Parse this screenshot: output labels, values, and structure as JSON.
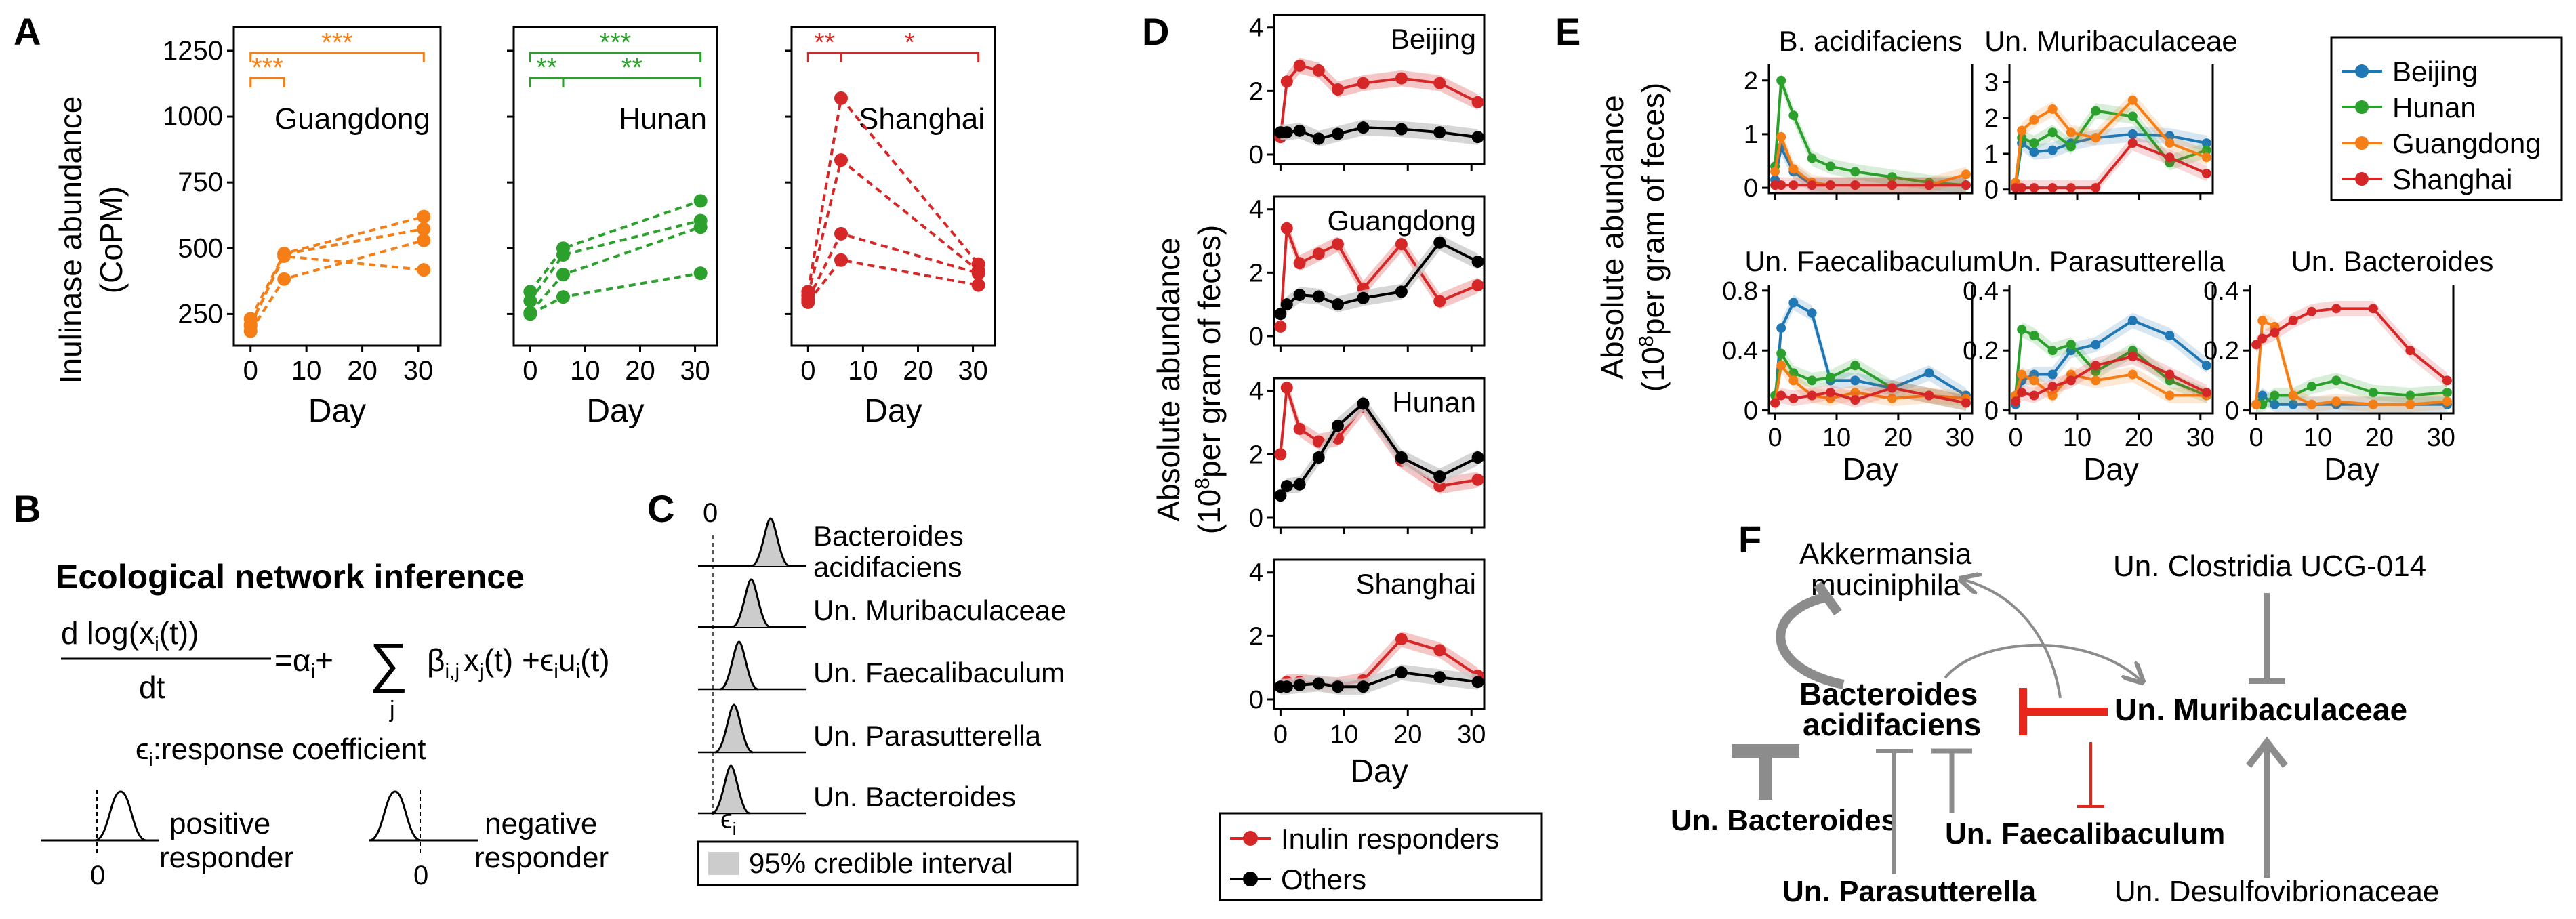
{
  "colors": {
    "Guangdong": "#f57f16",
    "Hunan": "#2ca02c",
    "Shanghai": "#d62728",
    "Beijing": "#1f77b4",
    "responder": "#d62728",
    "others": "#000000",
    "band_red": "#f2b8b8",
    "band_gray": "#cccccc",
    "network": "#8c8c8c",
    "inhibit": "#e8261c"
  },
  "panel_letters": [
    "A",
    "B",
    "C",
    "D",
    "E",
    "F"
  ],
  "panelA": {
    "ylabel": "Inulinase abundance",
    "ylabel2": "(CoPM)",
    "xlabel": "Day",
    "yticks": [
      250,
      500,
      750,
      1000,
      1250
    ],
    "xticks": [
      0,
      10,
      20,
      30
    ],
    "ylim": [
      130,
      1340
    ],
    "xlim": [
      -3,
      34
    ],
    "sig_levels_label": "significance brackets",
    "chart_data": [
      {
        "type": "line",
        "region": "Guangdong",
        "x": [
          0,
          6,
          31
        ],
        "series": [
          {
            "values": [
              232,
              480,
              620
            ]
          },
          {
            "values": [
              205,
              478,
              573
            ]
          },
          {
            "values": [
              185,
              383,
              530
            ]
          },
          {
            "values": [
              210,
              470,
              418
            ]
          }
        ],
        "brackets": [
          {
            "from": 0,
            "to": 6,
            "label": "***",
            "level": 2
          },
          {
            "from": 0,
            "to": 31,
            "label": "***",
            "level": 1
          }
        ]
      },
      {
        "type": "line",
        "region": "Hunan",
        "x": [
          0,
          6,
          31
        ],
        "series": [
          {
            "values": [
              335,
              500,
              680
            ]
          },
          {
            "values": [
              300,
              475,
              605
            ]
          },
          {
            "values": [
              255,
              400,
              580
            ]
          },
          {
            "values": [
              250,
              315,
              405
            ]
          }
        ],
        "brackets": [
          {
            "from": 0,
            "to": 6,
            "label": "**",
            "level": 2
          },
          {
            "from": 6,
            "to": 31,
            "label": "**",
            "level": 2
          },
          {
            "from": 0,
            "to": 31,
            "label": "***",
            "level": 1
          }
        ]
      },
      {
        "type": "line",
        "region": "Shanghai",
        "x": [
          0,
          6,
          31
        ],
        "series": [
          {
            "values": [
              335,
              1070,
              440
            ]
          },
          {
            "values": [
              320,
              835,
              415
            ]
          },
          {
            "values": [
              305,
              555,
              405
            ]
          },
          {
            "values": [
              295,
              455,
              360
            ]
          }
        ],
        "brackets": [
          {
            "from": 0,
            "to": 6,
            "label": "**",
            "level": 1
          },
          {
            "from": 6,
            "to": 31,
            "label": "*",
            "level": 1
          }
        ]
      }
    ]
  },
  "panelB": {
    "title": "Ecological network inference",
    "eq_num": "d log(x",
    "eq_num_i": "i",
    "eq_num_t": "(t))",
    "eq_den": "dt",
    "eq_rhs_a": "=α",
    "eq_rhs_a_i": "i",
    "eq_rhs_plus": "+",
    "eq_sum": "∑",
    "eq_sum_j": "j",
    "eq_beta": "β",
    "eq_beta_ij": "i,j",
    "eq_x": "x",
    "eq_x_j": "j",
    "eq_x_t": "(t) +ϵ",
    "eq_eps_i": "i",
    "eq_u": "u",
    "eq_u_i": "i",
    "eq_u_t": "(t)",
    "response": "ϵ",
    "response_i": "i",
    "response_text": ":response coefficient",
    "pos_line1": "positive",
    "pos_line2": "responder",
    "neg_line1": "negative",
    "neg_line2": "responder",
    "zero": "0"
  },
  "panelC": {
    "zero": "0",
    "xlabel": "ϵ",
    "xlabel_sub": "i",
    "legend": "95% credible interval",
    "chart_data": {
      "type": "density",
      "taxa": [
        {
          "name": "Bacteroides",
          "name2": "acidifaciens",
          "peak": 1.0
        },
        {
          "name": "Un. Muribaculaceae",
          "peak": 0.62
        },
        {
          "name": "Un. Faecalibaculum",
          "peak": 0.38
        },
        {
          "name": "Un. Parasutterella",
          "peak": 0.28
        },
        {
          "name": "Un. Bacteroides",
          "peak": 0.22
        }
      ]
    }
  },
  "panelD": {
    "ylabel": "Absolute abundance",
    "ylabel2": "(10",
    "ylabel2_sup": "8",
    "ylabel2_end": "per gram of feces)",
    "xlabel": "Day",
    "xticks": [
      0,
      10,
      20,
      30
    ],
    "yticks": [
      0,
      2,
      4
    ],
    "ylim": [
      -0.3,
      4.4
    ],
    "xlim": [
      -1,
      32
    ],
    "legend": [
      "Inulin responders",
      "Others"
    ],
    "chart_data": [
      {
        "type": "line",
        "region": "Beijing",
        "x": [
          0,
          1,
          3,
          6,
          9,
          13,
          19,
          25,
          31
        ],
        "responders": [
          0.55,
          2.3,
          2.8,
          2.65,
          2.05,
          2.25,
          2.4,
          2.25,
          1.65
        ],
        "others": [
          0.7,
          0.7,
          0.75,
          0.5,
          0.65,
          0.85,
          0.8,
          0.7,
          0.55
        ]
      },
      {
        "type": "line",
        "region": "Guangdong",
        "x": [
          0,
          1,
          3,
          6,
          9,
          13,
          19,
          25,
          31
        ],
        "responders": [
          0.3,
          3.4,
          2.3,
          2.6,
          2.9,
          1.5,
          2.9,
          1.1,
          1.6
        ],
        "others": [
          0.7,
          1.0,
          1.3,
          1.25,
          1.0,
          1.2,
          1.4,
          2.95,
          2.35
        ]
      },
      {
        "type": "line",
        "region": "Hunan",
        "x": [
          0,
          1,
          3,
          6,
          9,
          13,
          19,
          25,
          31
        ],
        "responders": [
          2.0,
          4.1,
          2.8,
          2.4,
          2.5,
          3.5,
          1.8,
          1.0,
          1.2
        ],
        "others": [
          0.7,
          1.0,
          1.05,
          1.9,
          2.9,
          3.6,
          1.9,
          1.3,
          1.9
        ]
      },
      {
        "type": "line",
        "region": "Shanghai",
        "x": [
          0,
          1,
          3,
          6,
          9,
          13,
          19,
          25,
          31
        ],
        "responders": [
          0.4,
          0.55,
          0.55,
          0.5,
          0.45,
          0.6,
          1.9,
          1.55,
          0.75
        ],
        "others": [
          0.4,
          0.4,
          0.45,
          0.5,
          0.4,
          0.4,
          0.85,
          0.7,
          0.55
        ]
      }
    ]
  },
  "panelE": {
    "ylabel": "Absolute abundance",
    "ylabel2": "(10",
    "ylabel2_sup": "8",
    "ylabel2_end": "per gram of feces)",
    "xlabel": "Day",
    "xticks": [
      0,
      10,
      20,
      30
    ],
    "legend": [
      "Beijing",
      "Hunan",
      "Guangdong",
      "Shanghai"
    ],
    "chart_data": [
      {
        "type": "line",
        "title": "B. acidifaciens",
        "yticks": [
          0,
          1,
          2
        ],
        "ylim": [
          -0.1,
          2.3
        ],
        "x": [
          0,
          1,
          3,
          6,
          9,
          13,
          19,
          25,
          31
        ],
        "series": {
          "Beijing": [
            0.15,
            0.75,
            0.3,
            0.05,
            0.05,
            0.05,
            0.05,
            0.05,
            0.05
          ],
          "Hunan": [
            0.4,
            2.0,
            1.35,
            0.55,
            0.4,
            0.3,
            0.2,
            0.1,
            0.05
          ],
          "Guangdong": [
            0.3,
            0.95,
            0.35,
            0.1,
            0.05,
            0.05,
            0.05,
            0.05,
            0.25
          ],
          "Shanghai": [
            0.05,
            0.05,
            0.05,
            0.05,
            0.05,
            0.05,
            0.05,
            0.05,
            0.05
          ]
        }
      },
      {
        "type": "line",
        "title": "Un. Muribaculaceae",
        "yticks": [
          0,
          1,
          2,
          3
        ],
        "ylim": [
          -0.1,
          3.5
        ],
        "x": [
          0,
          1,
          3,
          6,
          9,
          13,
          19,
          25,
          31
        ],
        "series": {
          "Beijing": [
            0.05,
            1.3,
            1.05,
            1.1,
            1.3,
            1.45,
            1.55,
            1.5,
            1.3
          ],
          "Hunan": [
            0.1,
            1.45,
            1.3,
            1.6,
            1.2,
            2.2,
            2.05,
            0.75,
            1.1
          ],
          "Guangdong": [
            0.2,
            1.65,
            1.95,
            2.25,
            1.6,
            1.45,
            2.5,
            1.3,
            0.9
          ],
          "Shanghai": [
            0.05,
            0.05,
            0.05,
            0.05,
            0.05,
            0.05,
            1.3,
            0.9,
            0.45
          ]
        }
      },
      {
        "type": "line",
        "title": "Un. Faecalibaculum",
        "yticks": [
          0,
          0.4,
          0.8
        ],
        "ylim": [
          -0.02,
          0.84
        ],
        "x": [
          0,
          1,
          3,
          6,
          9,
          13,
          19,
          25,
          31
        ],
        "series": {
          "Beijing": [
            0.05,
            0.55,
            0.72,
            0.65,
            0.2,
            0.2,
            0.15,
            0.25,
            0.1
          ],
          "Hunan": [
            0.1,
            0.38,
            0.25,
            0.2,
            0.22,
            0.3,
            0.15,
            0.1,
            0.05
          ],
          "Guangdong": [
            0.05,
            0.3,
            0.2,
            0.1,
            0.08,
            0.12,
            0.08,
            0.1,
            0.08
          ],
          "Shanghai": [
            0.05,
            0.1,
            0.08,
            0.1,
            0.12,
            0.07,
            0.15,
            0.1,
            0.05
          ]
        }
      },
      {
        "type": "line",
        "title": "Un. Parasutterella",
        "yticks": [
          0,
          0.2,
          0.4
        ],
        "ylim": [
          -0.01,
          0.42
        ],
        "x": [
          0,
          1,
          3,
          6,
          9,
          13,
          19,
          25,
          31
        ],
        "series": {
          "Beijing": [
            0.02,
            0.1,
            0.12,
            0.12,
            0.2,
            0.22,
            0.3,
            0.25,
            0.15
          ],
          "Hunan": [
            0.05,
            0.27,
            0.25,
            0.2,
            0.22,
            0.13,
            0.2,
            0.1,
            0.05
          ],
          "Guangdong": [
            0.05,
            0.12,
            0.1,
            0.05,
            0.12,
            0.1,
            0.12,
            0.05,
            0.05
          ],
          "Shanghai": [
            0.03,
            0.06,
            0.05,
            0.08,
            0.1,
            0.15,
            0.18,
            0.12,
            0.06
          ]
        }
      },
      {
        "type": "line",
        "title": "Un. Bacteroides",
        "yticks": [
          0,
          0.2,
          0.4
        ],
        "ylim": [
          -0.01,
          0.42
        ],
        "x": [
          0,
          1,
          3,
          6,
          9,
          13,
          19,
          25,
          31
        ],
        "series": {
          "Beijing": [
            0.02,
            0.05,
            0.02,
            0.02,
            0.02,
            0.02,
            0.02,
            0.02,
            0.02
          ],
          "Hunan": [
            0.02,
            0.02,
            0.05,
            0.05,
            0.08,
            0.1,
            0.06,
            0.05,
            0.06
          ],
          "Guangdong": [
            0.02,
            0.3,
            0.28,
            0.05,
            0.02,
            0.03,
            0.02,
            0.02,
            0.03
          ],
          "Shanghai": [
            0.22,
            0.24,
            0.26,
            0.3,
            0.33,
            0.34,
            0.34,
            0.2,
            0.1
          ]
        }
      }
    ]
  },
  "panelF": {
    "akk1": "Akkermansia",
    "akk2": "muciniphila",
    "clos": "Un. Clostridia UCG-014",
    "bac1": "Bacteroides",
    "bac2": "acidifaciens",
    "muri": "Un. Muribaculaceae",
    "unbac": "Un. Bacteroides",
    "faec": "Un. Faecalibaculum",
    "para": "Un. Parasutterella",
    "desulf": "Un. Desulfovibrionaceae"
  }
}
